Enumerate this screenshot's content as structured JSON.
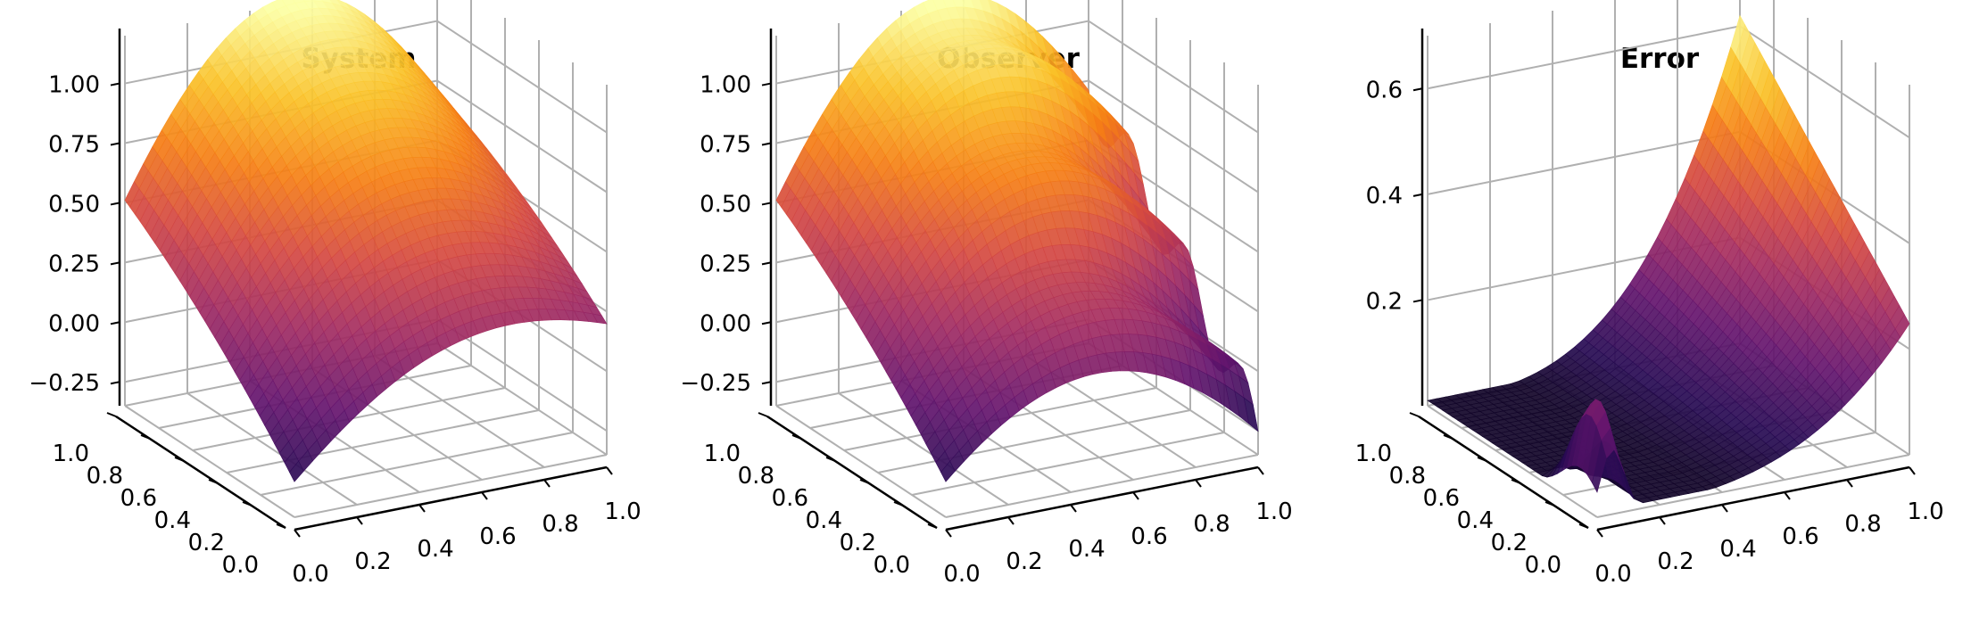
{
  "chart_data": [
    {
      "type": "surface3d",
      "title": "System",
      "x_ticks": [
        "0.0",
        "0.2",
        "0.4",
        "0.6",
        "0.8",
        "1.0"
      ],
      "y_ticks": [
        "0.0",
        "0.2",
        "0.4",
        "0.6",
        "0.8",
        "1.0"
      ],
      "z_ticks": [
        "−0.25",
        "0.00",
        "0.25",
        "0.50",
        "0.75",
        "1.00"
      ],
      "z_tick_values": [
        -0.25,
        0,
        0.25,
        0.5,
        0.75,
        1.0
      ],
      "zlim": [
        -0.35,
        1.2
      ],
      "xlim": [
        0,
        1
      ],
      "ylim": [
        0,
        1
      ],
      "colormap": "inferno",
      "corner_values": {
        "x0_y0": -0.4,
        "x1_y0": 0.45,
        "x0_y1": 0.0,
        "x1_y1": 0.72
      },
      "peak": 1.22
    },
    {
      "type": "surface3d",
      "title": "Observer",
      "x_ticks": [
        "0.0",
        "0.2",
        "0.4",
        "0.6",
        "0.8",
        "1.0"
      ],
      "y_ticks": [
        "0.0",
        "0.2",
        "0.4",
        "0.6",
        "0.8",
        "1.0"
      ],
      "z_ticks": [
        "−0.25",
        "0.00",
        "0.25",
        "0.50",
        "0.75",
        "1.00"
      ],
      "z_tick_values": [
        -0.25,
        0,
        0.25,
        0.5,
        0.75,
        1.0
      ],
      "zlim": [
        -0.35,
        1.2
      ],
      "xlim": [
        0,
        1
      ],
      "ylim": [
        0,
        1
      ],
      "colormap": "inferno",
      "corner_values": {
        "x0_y0": -0.4,
        "x1_y0": 0.1,
        "x0_y1": 0.0,
        "x1_y1": 0.75
      },
      "peak": 1.22
    },
    {
      "type": "surface3d",
      "title": "Error",
      "x_ticks": [
        "0.0",
        "0.2",
        "0.4",
        "0.6",
        "0.8",
        "1.0"
      ],
      "y_ticks": [
        "0.0",
        "0.2",
        "0.4",
        "0.6",
        "0.8",
        "1.0"
      ],
      "z_ticks": [
        "0.2",
        "0.4",
        "0.6"
      ],
      "z_tick_values": [
        0.2,
        0.4,
        0.6
      ],
      "zlim": [
        0,
        0.7
      ],
      "xlim": [
        0,
        1
      ],
      "ylim": [
        0,
        1
      ],
      "colormap": "inferno",
      "max_error": 0.62
    }
  ]
}
